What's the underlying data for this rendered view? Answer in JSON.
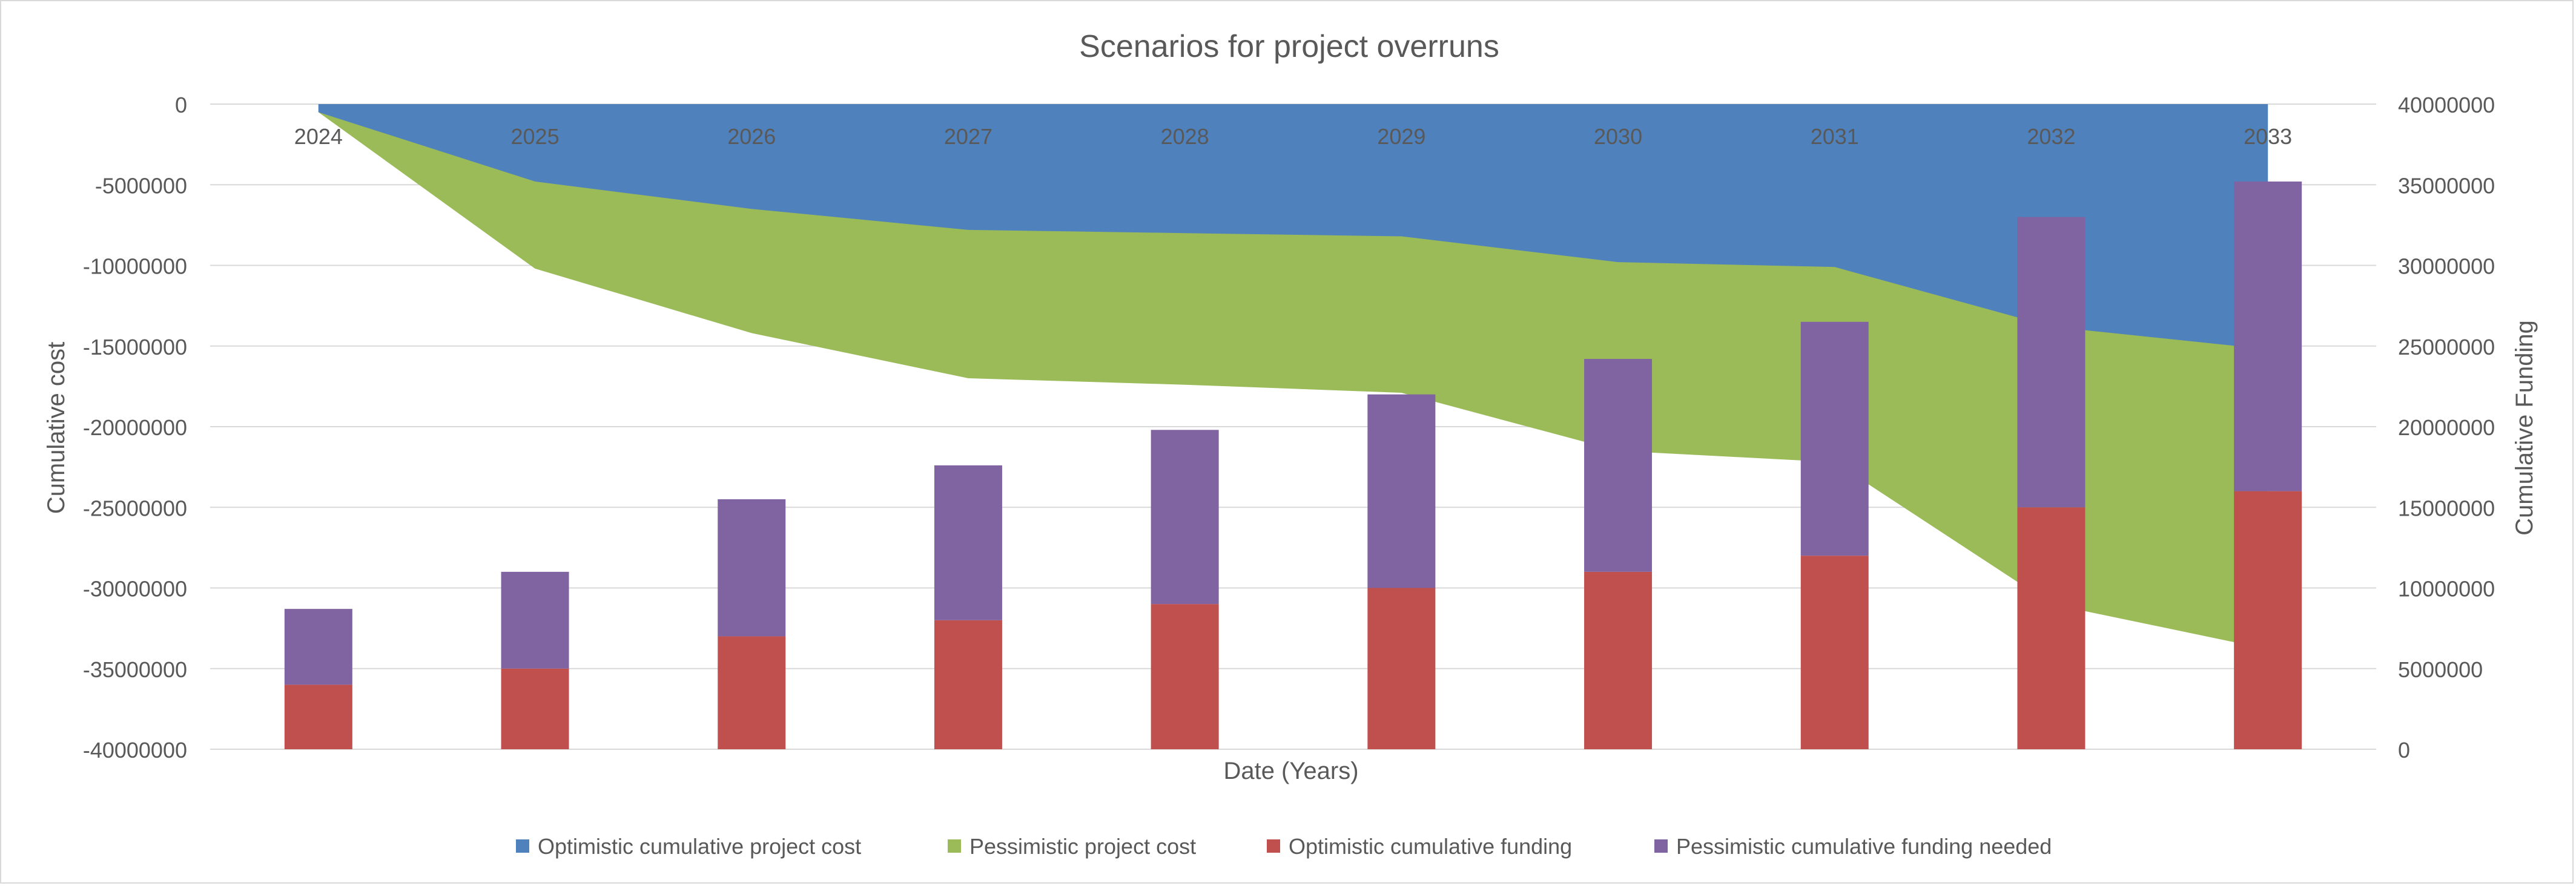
{
  "chart_data": {
    "type": "bar+area",
    "title": "Scenarios for project overruns",
    "xlabel": "Date (Years)",
    "ylabel_left": "Cumulative cost",
    "ylabel_right": "Cumulative Funding",
    "categories": [
      "2024",
      "2025",
      "2026",
      "2027",
      "2028",
      "2029",
      "2030",
      "2031",
      "2032",
      "2033"
    ],
    "left_axis": {
      "min": -40000000,
      "max": 0,
      "ticks": [
        0,
        -5000000,
        -10000000,
        -15000000,
        -20000000,
        -25000000,
        -30000000,
        -35000000,
        -40000000
      ]
    },
    "right_axis": {
      "min": 0,
      "max": 40000000,
      "ticks": [
        40000000,
        35000000,
        30000000,
        25000000,
        20000000,
        15000000,
        10000000,
        5000000,
        0
      ]
    },
    "grid": true,
    "legend_position": "bottom",
    "series": [
      {
        "name": "Optimistic cumulative project cost",
        "type": "area",
        "axis": "left",
        "color": "#4f81bd",
        "values": [
          -500000,
          -4800000,
          -6500000,
          -7800000,
          -8000000,
          -8200000,
          -9800000,
          -10100000,
          -13800000,
          -15200000
        ]
      },
      {
        "name": "Pessimistic project cost",
        "type": "area",
        "axis": "left",
        "color": "#9bbb59",
        "values": [
          -500000,
          -10200000,
          -14200000,
          -17000000,
          -17400000,
          -17900000,
          -21500000,
          -22200000,
          -31000000,
          -33800000
        ]
      },
      {
        "name": "Optimistic cumulative funding",
        "type": "stacked-bar",
        "axis": "right",
        "color": "#c0504d",
        "values": [
          4000000,
          5000000,
          7000000,
          8000000,
          9000000,
          10000000,
          11000000,
          12000000,
          15000000,
          16000000
        ]
      },
      {
        "name": "Pessimistic cumulative funding needed",
        "type": "stacked-bar",
        "axis": "right",
        "color": "#8064a2",
        "values": [
          4700000,
          6000000,
          8500000,
          9600000,
          10800000,
          12000000,
          13200000,
          14500000,
          18000000,
          19200000
        ]
      }
    ]
  }
}
